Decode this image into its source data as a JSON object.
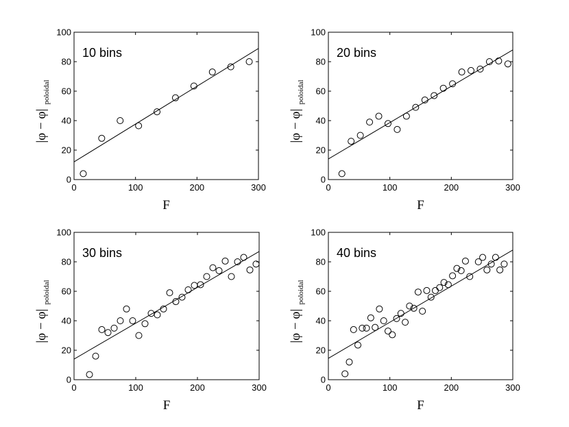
{
  "chart_data": [
    {
      "type": "scatter",
      "annotation": "10 bins",
      "xlabel": "F",
      "ylabel": "|φ − φ|",
      "ylabel_subscript": "poloidal",
      "xlim": [
        0,
        300
      ],
      "ylim": [
        0,
        100
      ],
      "xticks": [
        0,
        100,
        200,
        300
      ],
      "yticks": [
        0,
        20,
        40,
        60,
        80,
        100
      ],
      "fit_line": [
        [
          0,
          12
        ],
        [
          300,
          89
        ]
      ],
      "x": [
        15,
        45,
        75,
        105,
        135,
        165,
        195,
        225,
        255,
        285
      ],
      "y": [
        4,
        28,
        40,
        36.5,
        46,
        55.5,
        63.5,
        73,
        76.5,
        80
      ]
    },
    {
      "type": "scatter",
      "annotation": "20 bins",
      "xlabel": "F",
      "ylabel": "|φ − φ|",
      "ylabel_subscript": "poloidal",
      "xlim": [
        0,
        300
      ],
      "ylim": [
        0,
        100
      ],
      "xticks": [
        0,
        100,
        200,
        300
      ],
      "yticks": [
        0,
        20,
        40,
        60,
        80,
        100
      ],
      "fit_line": [
        [
          0,
          14
        ],
        [
          300,
          88
        ]
      ],
      "x": [
        22,
        37,
        52,
        67,
        82,
        97,
        112,
        127,
        142,
        157,
        172,
        187,
        202,
        217,
        232,
        247,
        262,
        277,
        292
      ],
      "y": [
        4,
        26,
        30,
        39,
        43,
        38,
        34,
        43,
        49,
        54,
        57,
        62,
        65,
        73,
        74,
        75,
        80,
        80.5,
        78.5
      ]
    },
    {
      "type": "scatter",
      "annotation": "30 bins",
      "xlabel": "F",
      "ylabel": "|φ − φ|",
      "ylabel_subscript": "poloidal",
      "xlim": [
        0,
        300
      ],
      "ylim": [
        0,
        100
      ],
      "xticks": [
        0,
        100,
        200,
        300
      ],
      "yticks": [
        0,
        20,
        40,
        60,
        80,
        100
      ],
      "fit_line": [
        [
          0,
          14
        ],
        [
          300,
          87
        ]
      ],
      "x": [
        25,
        35,
        45,
        55,
        65,
        75,
        85,
        95,
        105,
        115,
        125,
        135,
        145,
        155,
        165,
        175,
        185,
        195,
        205,
        215,
        225,
        235,
        245,
        255,
        265,
        275,
        285,
        295
      ],
      "y": [
        3.5,
        16,
        34,
        32,
        35,
        40,
        48,
        40,
        30,
        38,
        45,
        44,
        48,
        59,
        53,
        56,
        61,
        64,
        64.5,
        70,
        76,
        74,
        80.5,
        70,
        80,
        83,
        74.5,
        78.5
      ]
    },
    {
      "type": "scatter",
      "annotation": "40 bins",
      "xlabel": "F",
      "ylabel": "|φ − φ|",
      "ylabel_subscript": "poloidal",
      "xlim": [
        0,
        300
      ],
      "ylim": [
        0,
        100
      ],
      "xticks": [
        0,
        100,
        200,
        300
      ],
      "yticks": [
        0,
        20,
        40,
        60,
        80,
        100
      ],
      "fit_line": [
        [
          0,
          14.5
        ],
        [
          300,
          88
        ]
      ],
      "x": [
        27,
        34,
        41,
        48,
        55,
        62,
        69,
        76,
        83,
        90,
        97,
        104,
        111,
        118,
        125,
        132,
        139,
        146,
        153,
        160,
        167,
        174,
        181,
        188,
        195,
        202,
        209,
        216,
        223,
        230,
        244,
        251,
        258,
        265,
        272,
        279,
        286
      ],
      "y": [
        4,
        12,
        34,
        23.5,
        35,
        35,
        42,
        35.5,
        48,
        40,
        33,
        30.5,
        41.5,
        45,
        39,
        50,
        48.5,
        59.5,
        46.5,
        60.5,
        56,
        60.5,
        62.5,
        66,
        64.5,
        70.5,
        75.5,
        74,
        80.5,
        70,
        80,
        83,
        74.5,
        78.5,
        83,
        74.5,
        78.5
      ]
    }
  ]
}
